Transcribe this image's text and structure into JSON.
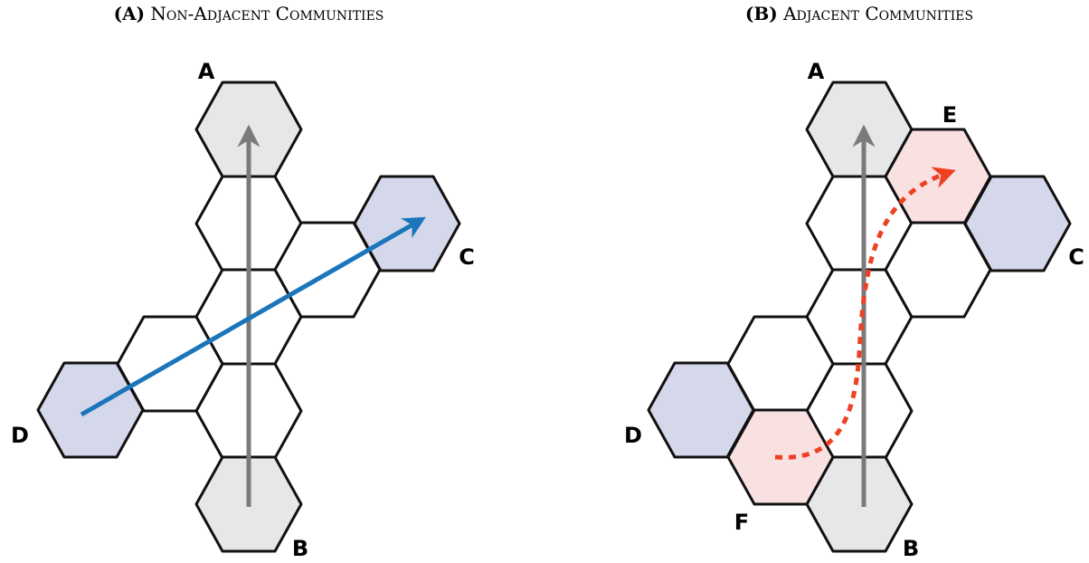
{
  "panels": [
    {
      "tag": "(A)",
      "title": "Non-Adjacent Communities",
      "labels": [
        "A",
        "B",
        "C",
        "D"
      ]
    },
    {
      "tag": "(B)",
      "title": "Adjacent Communities",
      "labels": [
        "A",
        "B",
        "C",
        "D",
        "E",
        "F"
      ]
    }
  ]
}
